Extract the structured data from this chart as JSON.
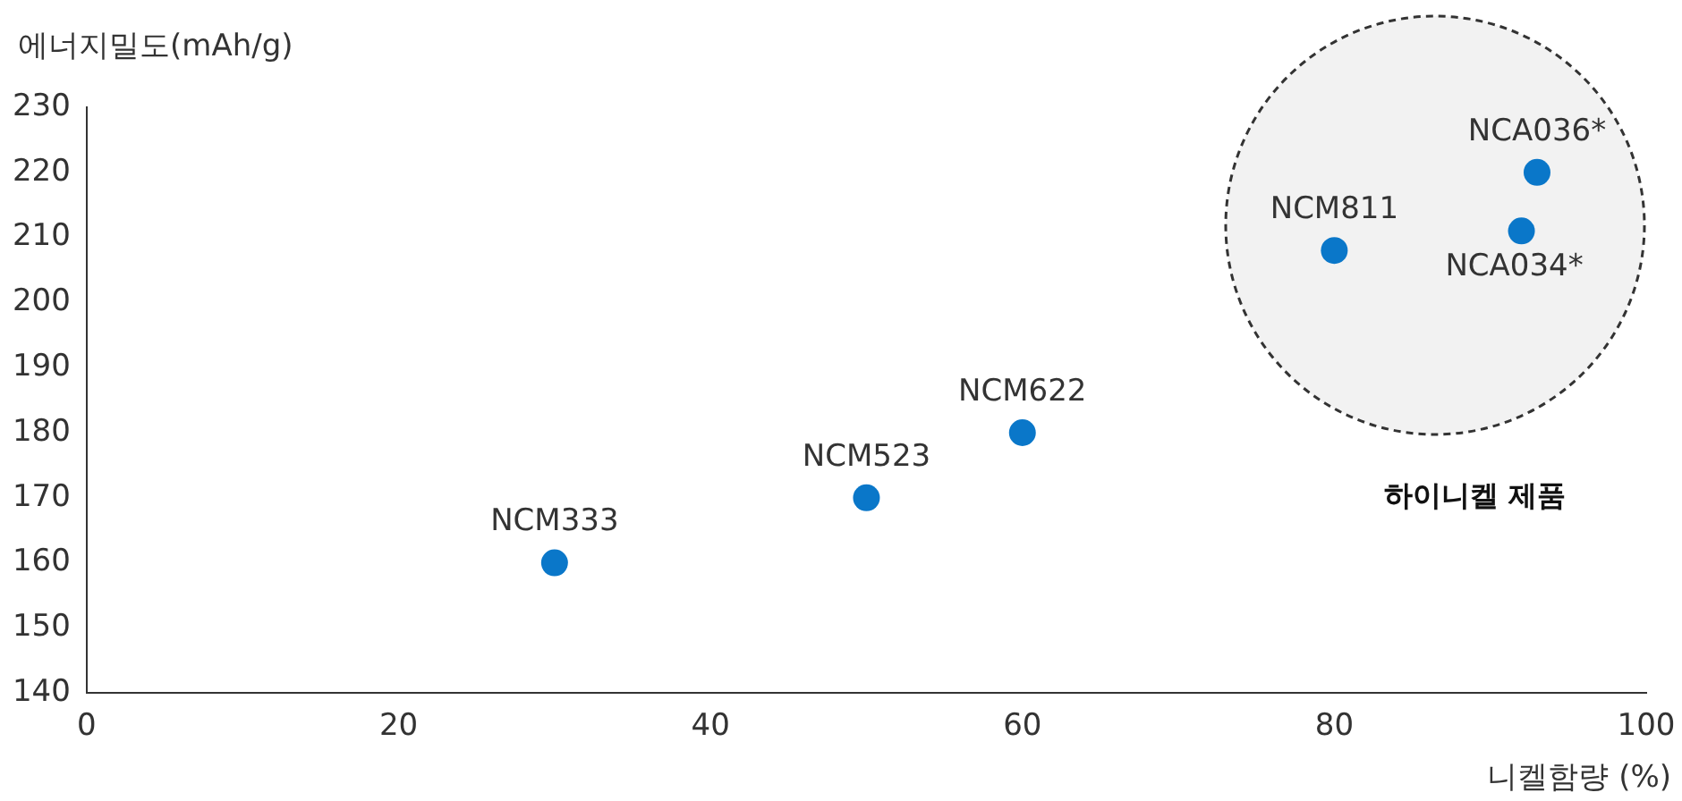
{
  "chart_data": {
    "type": "scatter",
    "xlabel": "니켈함량 (%)",
    "ylabel": "에너지밀도(mAh/g)",
    "x": [
      30,
      50,
      60,
      80,
      93,
      92
    ],
    "series": [
      {
        "color": "#0a77c9",
        "values": [
          160,
          170,
          180,
          208,
          220,
          211
        ]
      }
    ],
    "xlim": [
      0,
      100
    ],
    "xticks": [
      0,
      20,
      40,
      60,
      80,
      100
    ],
    "ylim": [
      140,
      230
    ],
    "yticks": [
      140,
      150,
      160,
      170,
      180,
      190,
      200,
      210,
      220,
      230
    ],
    "grid": false,
    "legend": false,
    "marker": "circle",
    "annotations": [
      {
        "text": "NCM333",
        "x": 30,
        "y": 160
      },
      {
        "text": "NCM523",
        "x": 50,
        "y": 170
      },
      {
        "text": "NCM622",
        "x": 60,
        "y": 180
      },
      {
        "text": "NCM811",
        "x": 80,
        "y": 208
      },
      {
        "text": "NCA036*",
        "x": 93,
        "y": 220
      },
      {
        "text": "NCA034*",
        "x": 92,
        "y": 211
      },
      "하이니켈 제품"
    ]
  }
}
